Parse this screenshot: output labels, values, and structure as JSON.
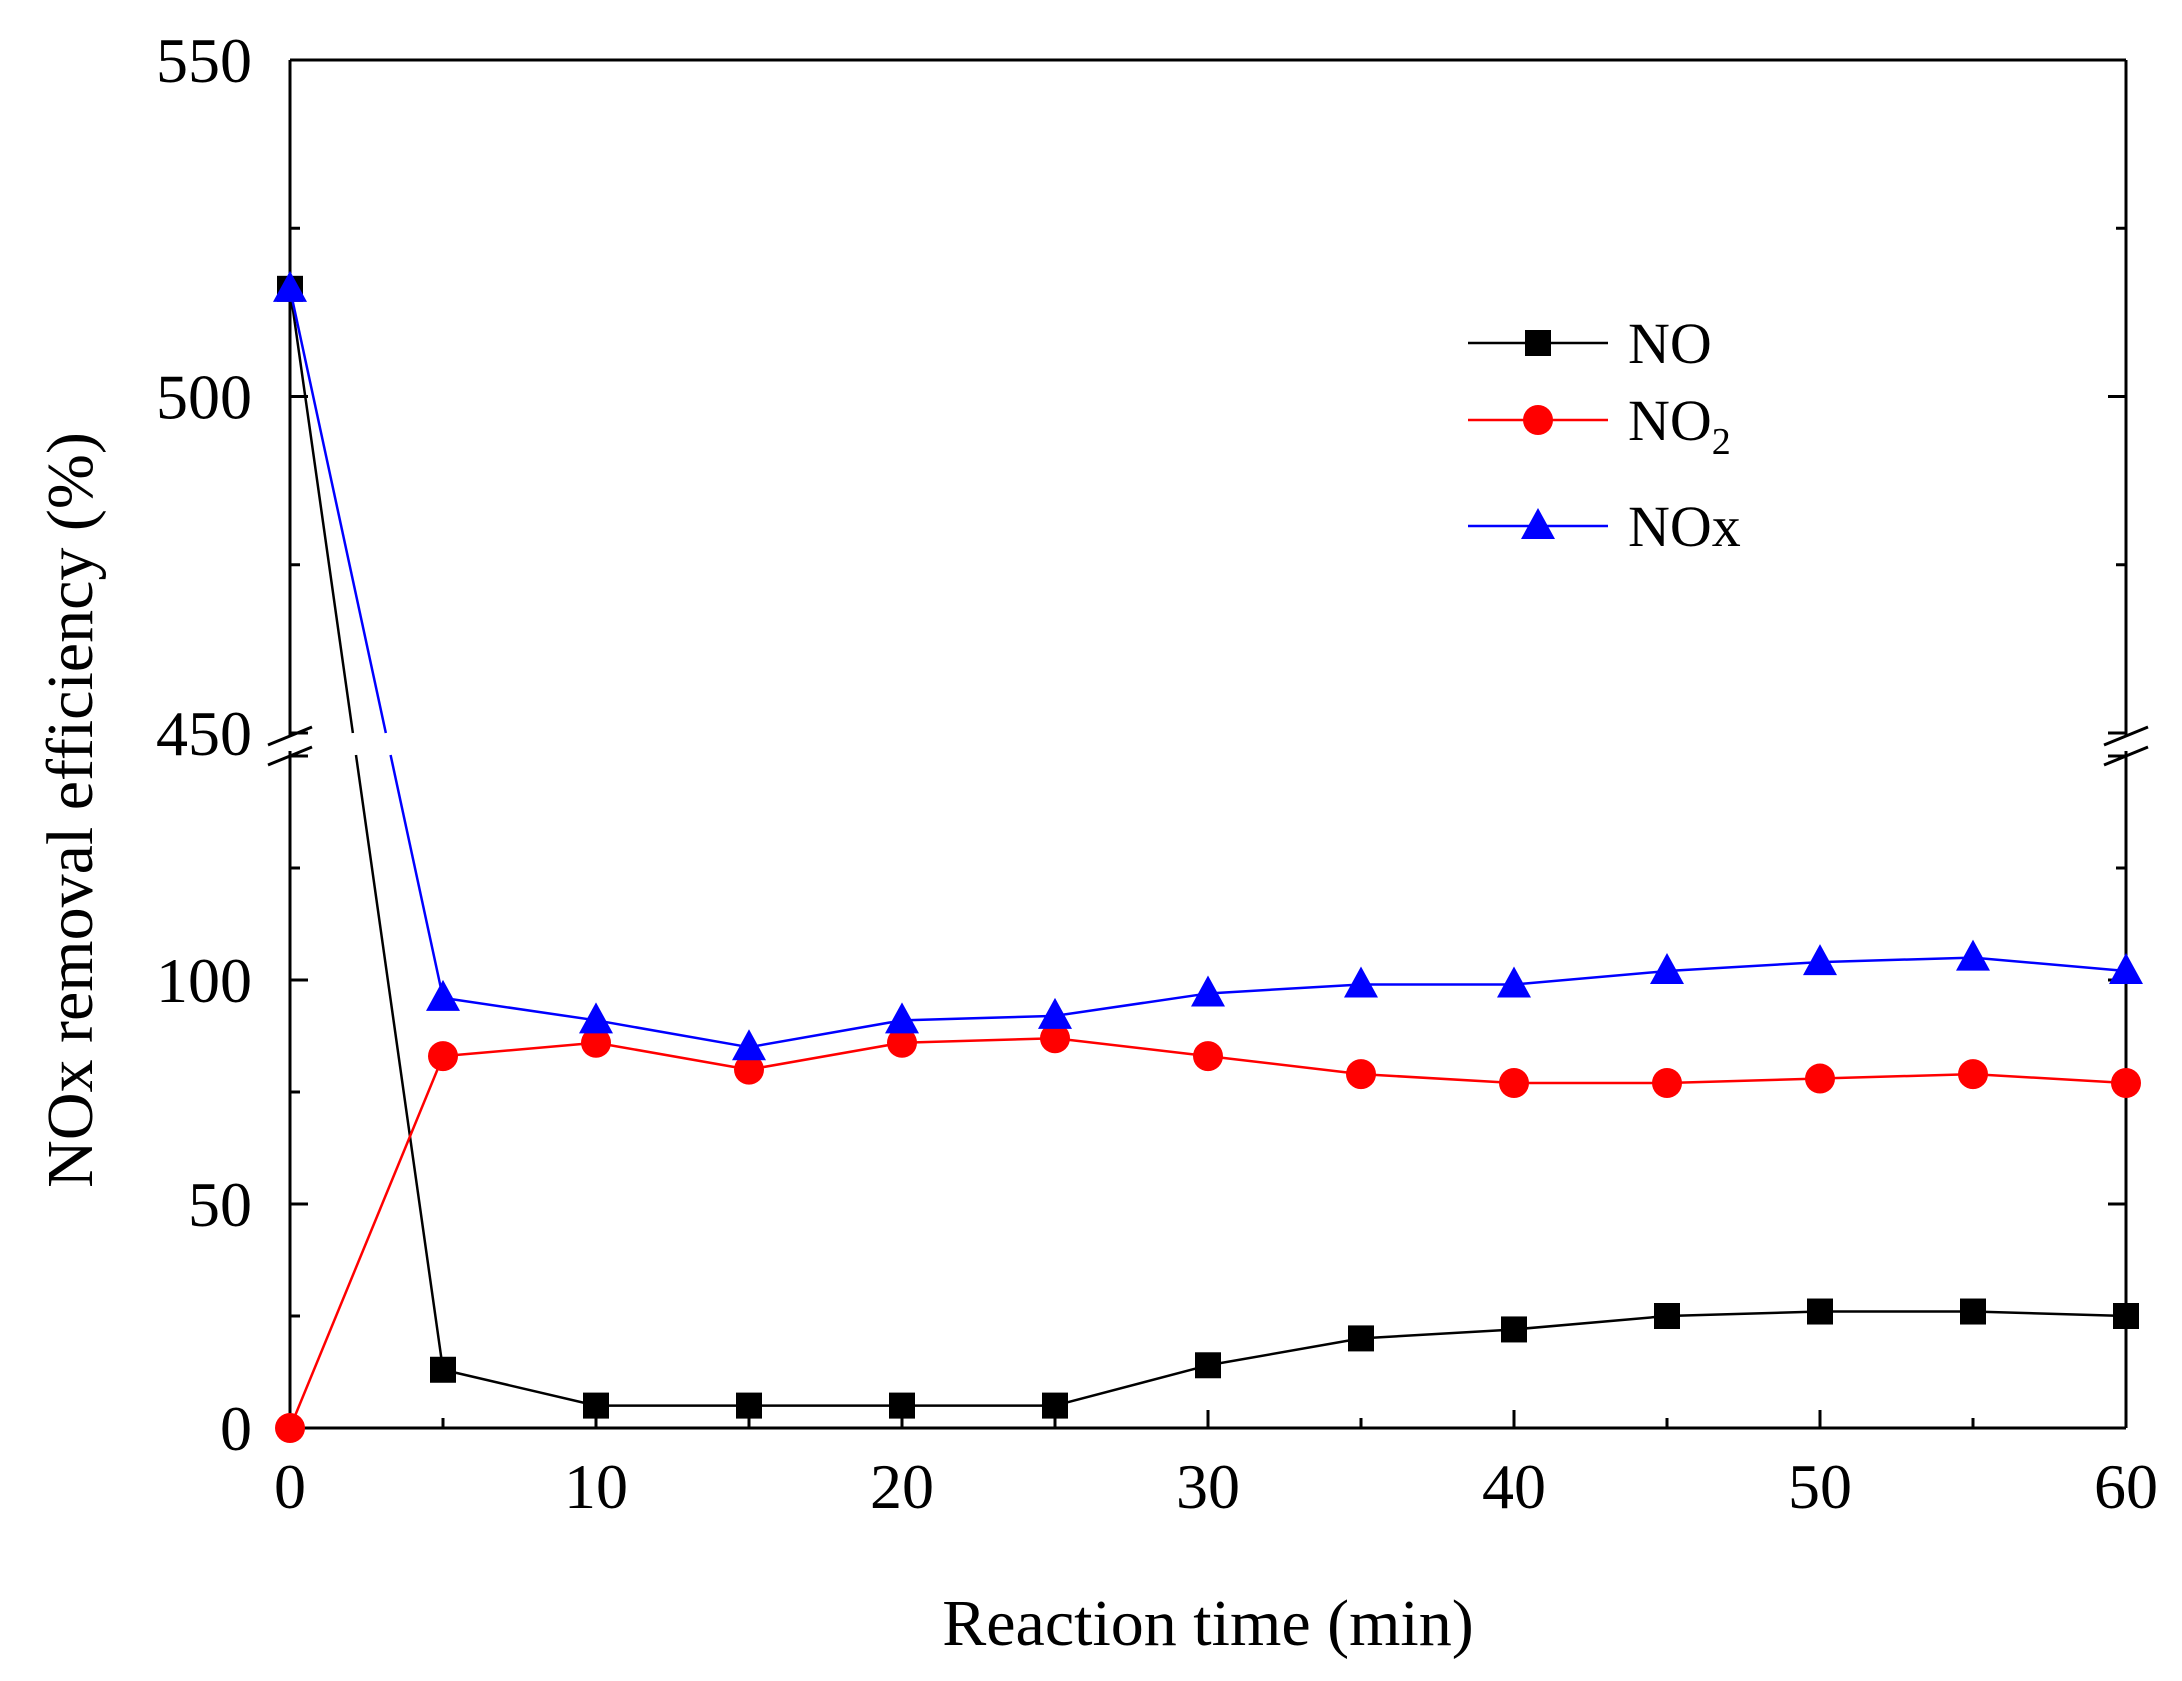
{
  "chart_data": {
    "type": "line",
    "title": "",
    "xlabel": "Reaction time (min)",
    "ylabel": "NOx removal efficiency (%)",
    "xlim": [
      0,
      60
    ],
    "ylim_lower": [
      0,
      150
    ],
    "ylim_upper": [
      450,
      550
    ],
    "y_axis_break": true,
    "grid": false,
    "legend_position": "top-right",
    "x_ticks": [
      "0",
      "10",
      "20",
      "30",
      "40",
      "50",
      "60"
    ],
    "y_ticks": [
      "0",
      "50",
      "100",
      "450",
      "500",
      "550"
    ],
    "x": [
      0,
      5,
      10,
      15,
      20,
      25,
      30,
      35,
      40,
      45,
      50,
      55,
      60
    ],
    "series": [
      {
        "name": "NO",
        "name_subscript": "",
        "color": "#000000",
        "marker": "square",
        "values": [
          516,
          13,
          5,
          5,
          5,
          5,
          14,
          20,
          22,
          25,
          26,
          26,
          25
        ]
      },
      {
        "name": "NO",
        "name_subscript": "2",
        "color": "#ff0000",
        "marker": "circle",
        "values": [
          0,
          83,
          86,
          80,
          86,
          87,
          83,
          79,
          77,
          77,
          78,
          79,
          77
        ]
      },
      {
        "name": "NOx",
        "name_subscript": "",
        "color": "#0000ff",
        "marker": "triangle",
        "values": [
          516,
          96,
          91,
          85,
          91,
          92,
          97,
          99,
          99,
          102,
          104,
          105,
          102
        ]
      }
    ]
  }
}
